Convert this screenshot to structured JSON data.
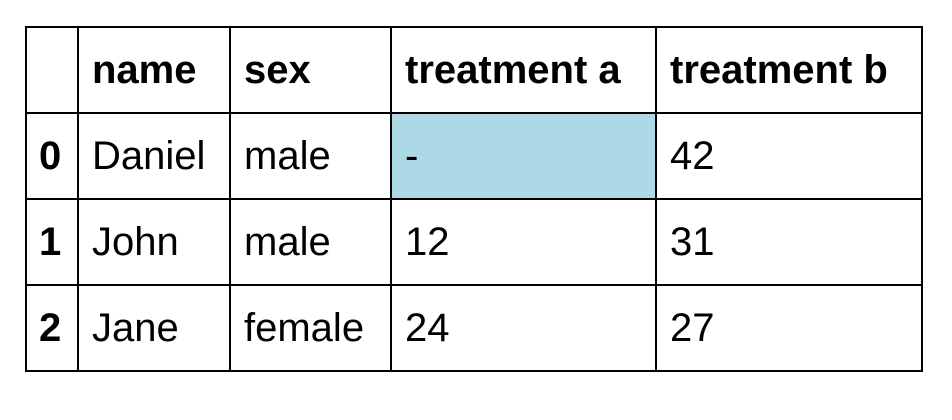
{
  "table": {
    "columns": [
      "",
      "name",
      "sex",
      "treatment a",
      "treatment b"
    ],
    "rows": [
      {
        "index": "0",
        "name": "Daniel",
        "sex": "male",
        "treatment_a": "-",
        "treatment_b": "42"
      },
      {
        "index": "1",
        "name": "John",
        "sex": "male",
        "treatment_a": "12",
        "treatment_b": "31"
      },
      {
        "index": "2",
        "name": "Jane",
        "sex": "female",
        "treatment_a": "24",
        "treatment_b": "27"
      }
    ],
    "highlight_color": "#add8e6",
    "highlighted_cell": {
      "row": 0,
      "column": "treatment a"
    }
  }
}
